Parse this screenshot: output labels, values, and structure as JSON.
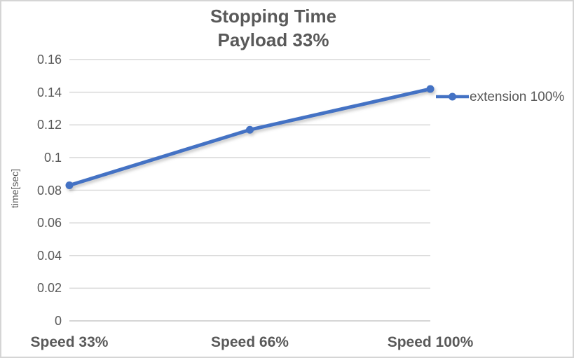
{
  "chart": {
    "title_line1": "Stopping Time",
    "title_line2": "Payload 33%",
    "y_axis_title": "time[sec]",
    "legend": {
      "label": "extension 100%"
    }
  },
  "chart_data": {
    "type": "line",
    "title": "Stopping Time",
    "subtitle": "Payload 33%",
    "categories": [
      "Speed 33%",
      "Speed 66%",
      "Speed 100%"
    ],
    "series": [
      {
        "name": "extension 100%",
        "values": [
          0.083,
          0.117,
          0.142
        ]
      }
    ],
    "xlabel": "",
    "ylabel": "time[sec]",
    "ylim": [
      0,
      0.16
    ],
    "y_tick_step": 0.02,
    "y_tick_labels": [
      "0",
      "0.02",
      "0.04",
      "0.06",
      "0.08",
      "0.1",
      "0.12",
      "0.14",
      "0.16"
    ],
    "grid": "horizontal",
    "legend_position": "right",
    "colors": {
      "series": "#4472C4",
      "gridline": "#D9D9D9",
      "axis_line": "#C9C9C9",
      "text": "#595959",
      "frame_border": "#D5D5D5",
      "background": "#FFFFFF"
    }
  }
}
